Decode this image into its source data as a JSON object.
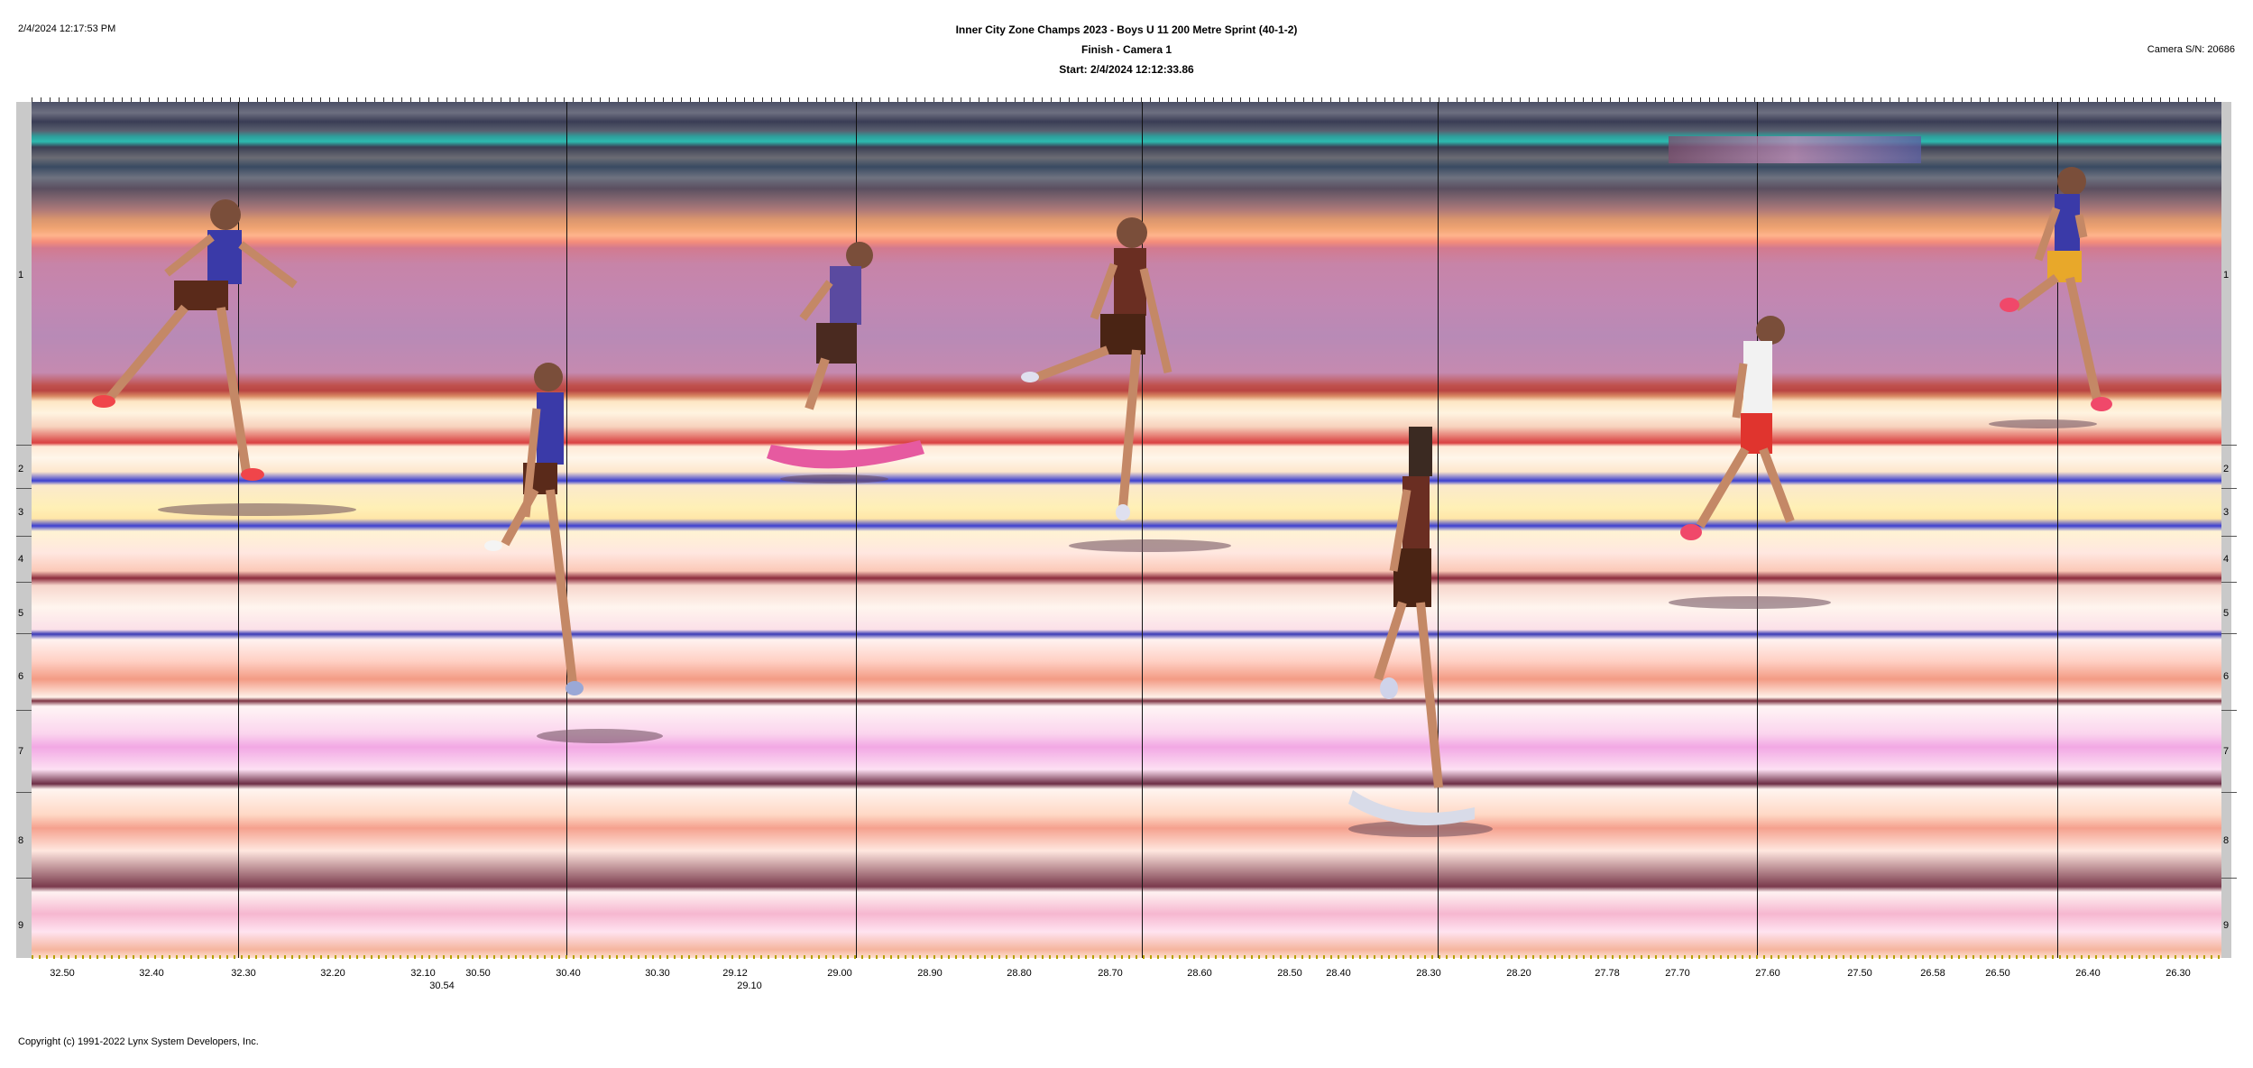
{
  "header": {
    "datetime": "2/4/2024 12:17:53 PM",
    "title_line1": "Inner City Zone Champs 2023 - Boys U 11 200 Metre Sprint (40-1-2)",
    "title_line2": "Finish - Camera 1",
    "title_line3": "Start: 2/4/2024 12:12:33.86",
    "camera_serial": "Camera S/N: 20686"
  },
  "lanes": [
    "1",
    "2",
    "3",
    "4",
    "5",
    "6",
    "7",
    "8",
    "9"
  ],
  "time_ticks_primary": [
    "32.50",
    "32.40",
    "32.30",
    "32.20",
    "32.10",
    "30.50",
    "30.40",
    "30.30",
    "29.12",
    "29.00",
    "28.90",
    "28.80",
    "28.70",
    "28.60",
    "28.50",
    "28.40",
    "28.30",
    "28.20",
    "27.78",
    "27.70",
    "27.60",
    "27.50",
    "26.58",
    "26.50",
    "26.40",
    "26.30"
  ],
  "time_ticks_secondary": [
    "30.54",
    "29.10"
  ],
  "runners": [
    {
      "name": "runner-lane-1-left",
      "color": "#3a3aa8"
    },
    {
      "name": "runner-lane-3-blue",
      "color": "#3a3aa8"
    },
    {
      "name": "runner-lane-2-purple",
      "color": "#4a3aa0"
    },
    {
      "name": "runner-lane-1-brown",
      "color": "#6a2e22"
    },
    {
      "name": "runner-lane-7-brown",
      "color": "#6a2e22"
    },
    {
      "name": "runner-lane-3-white",
      "color": "#f2f2f2"
    },
    {
      "name": "runner-lane-1-right",
      "color": "#3a3aa8"
    }
  ],
  "footer": {
    "copyright": "Copyright (c) 1991-2022 Lynx System Developers, Inc."
  }
}
